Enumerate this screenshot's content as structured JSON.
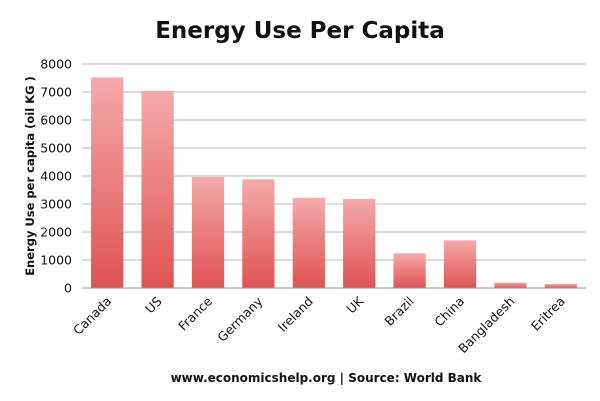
{
  "chart_data": {
    "type": "bar",
    "title": "Energy Use Per Capita",
    "ylabel": "Energy Use per capita (oil KG )",
    "xlabel": "",
    "categories": [
      "Canada",
      "US",
      "France",
      "Germany",
      "Ireland",
      "UK",
      "Brazil",
      "China",
      "Bangladesh",
      "Eritrea"
    ],
    "values": [
      7520,
      7040,
      3960,
      3880,
      3220,
      3180,
      1240,
      1700,
      190,
      140
    ],
    "ylim": [
      0,
      8000
    ],
    "yticks": [
      "0",
      "1000",
      "2000",
      "3000",
      "4000",
      "5000",
      "6000",
      "7000",
      "8000"
    ],
    "grid": true,
    "legend": "none",
    "bar_color_top": "#f4aaaa",
    "bar_color_bottom": "#e05252"
  },
  "footer": {
    "source": "www.economicshelp.org | Source: World Bank"
  }
}
